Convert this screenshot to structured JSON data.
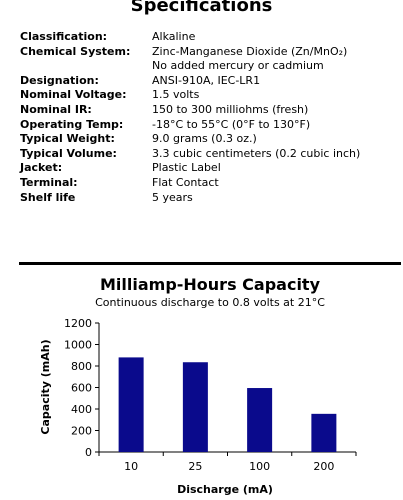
{
  "specifications": {
    "title": "Specifications",
    "rows": [
      {
        "label": "Classification:",
        "value": "Alkaline"
      },
      {
        "label": "Chemical System:",
        "value": "Zinc-Manganese Dioxide (Zn/MnO₂)"
      },
      {
        "label": "",
        "value": "No added mercury or cadmium"
      },
      {
        "label": "Designation:",
        "value": "ANSI-910A, IEC-LR1"
      },
      {
        "label": "Nominal Voltage:",
        "value": "1.5 volts"
      },
      {
        "label": "Nominal IR:",
        "value": "150 to 300 milliohms (fresh)"
      },
      {
        "label": "Operating Temp:",
        "value": "-18°C to 55°C (0°F to 130°F)"
      },
      {
        "label": "Typical Weight:",
        "value": "9.0 grams (0.3 oz.)"
      },
      {
        "label": "Typical Volume:",
        "value": "3.3 cubic centimeters (0.2 cubic inch)"
      },
      {
        "label": "Jacket:",
        "value": "Plastic Label"
      },
      {
        "label": "Terminal:",
        "value": "Flat Contact"
      },
      {
        "label": "Shelf life",
        "value": "5 years"
      }
    ]
  },
  "chart_data": {
    "type": "bar",
    "title": "Milliamp-Hours Capacity",
    "subtitle": "Continuous discharge to 0.8 volts at 21°C",
    "xlabel": "Discharge (mA)",
    "ylabel": "Capacity (mAh)",
    "categories": [
      "10",
      "25",
      "100",
      "200"
    ],
    "values": [
      880,
      835,
      595,
      355
    ],
    "ylim": [
      0,
      1200
    ],
    "yticks": [
      0,
      200,
      400,
      600,
      800,
      1000,
      1200
    ],
    "bar_color": "#0a0a8c",
    "grid": false
  }
}
